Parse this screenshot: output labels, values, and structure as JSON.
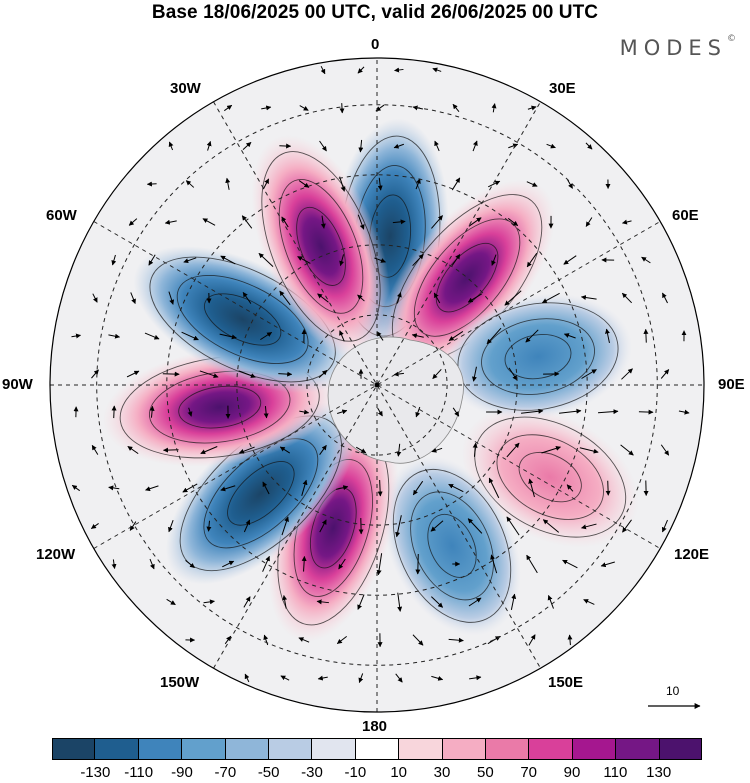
{
  "title": "Base 18/06/2025 00 UTC, valid 26/06/2025 00 UTC",
  "brand": "MODES",
  "brand_mark": "©",
  "longitude_labels": {
    "top": "0",
    "bottom": "180",
    "left": "90W",
    "right": "90E",
    "upper_left": "30W",
    "upper_right": "30E",
    "mid_upper_left": "60W",
    "mid_upper_right": "60E",
    "mid_lower_left": "120W",
    "mid_lower_right": "120E",
    "lower_left": "150W",
    "lower_right": "150E"
  },
  "projection": "south-polar-stereographic",
  "vector_reference": "10",
  "colorbar": {
    "colors": [
      "#1b4466",
      "#1f5e8f",
      "#3f84bb",
      "#62a0cc",
      "#8fb6d9",
      "#b9cce4",
      "#e1e5ef",
      "#ffffff",
      "#f8d6dc",
      "#f5adc3",
      "#ea7aa8",
      "#d9409a",
      "#a5178f",
      "#751785",
      "#4c126d"
    ],
    "ticks": [
      "-130",
      "-110",
      "-90",
      "-70",
      "-50",
      "-30",
      "-10",
      "10",
      "30",
      "50",
      "70",
      "90",
      "110",
      "130"
    ]
  },
  "anomaly_centers": [
    {
      "lon_deg": 5,
      "lat_deg": -58,
      "value": -120
    },
    {
      "lon_deg": 40,
      "lat_deg": -60,
      "value": 120
    },
    {
      "lon_deg": 80,
      "lat_deg": -55,
      "value": -60
    },
    {
      "lon_deg": 118,
      "lat_deg": -48,
      "value": 50
    },
    {
      "lon_deg": 155,
      "lat_deg": -52,
      "value": -70
    },
    {
      "lon_deg": -163,
      "lat_deg": -58,
      "value": 110
    },
    {
      "lon_deg": -133,
      "lat_deg": -56,
      "value": -120
    },
    {
      "lon_deg": -98,
      "lat_deg": -56,
      "value": 130
    },
    {
      "lon_deg": -64,
      "lat_deg": -58,
      "value": -120
    },
    {
      "lon_deg": -22,
      "lat_deg": -58,
      "value": 110
    }
  ]
}
